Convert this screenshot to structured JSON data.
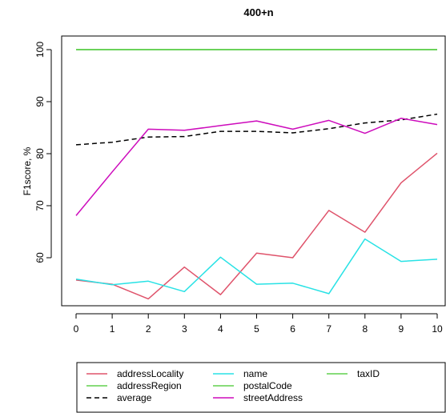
{
  "chart_data": {
    "type": "line",
    "title": "400+n",
    "xlabel": "",
    "ylabel": "F1score, %",
    "x": [
      0,
      1,
      2,
      3,
      4,
      5,
      6,
      7,
      8,
      9,
      10
    ],
    "x_ticks": [
      "0",
      "1",
      "2",
      "3",
      "4",
      "5",
      "6",
      "7",
      "8",
      "9",
      "10"
    ],
    "y_ticks": [
      "60",
      "70",
      "80",
      "90",
      "100"
    ],
    "xlim": [
      0,
      10
    ],
    "ylim": [
      51,
      102
    ],
    "grid": false,
    "legend_position": "bottom",
    "series": [
      {
        "name": "addressLocality",
        "color": "#DF536B",
        "dash": "solid",
        "values": [
          55.7,
          54.9,
          52.1,
          58.2,
          52.9,
          60.9,
          60.0,
          69.1,
          64.9,
          74.4,
          80.1
        ]
      },
      {
        "name": "addressRegion",
        "color": "#61D04F",
        "dash": "solid",
        "values": [
          100,
          100,
          100,
          100,
          100,
          100,
          100,
          100,
          100,
          100,
          100
        ]
      },
      {
        "name": "average",
        "color": "#000000",
        "dash": "dashed",
        "values": [
          81.7,
          82.2,
          83.2,
          83.3,
          84.3,
          84.3,
          84.0,
          84.8,
          85.9,
          86.5,
          87.6
        ]
      },
      {
        "name": "name",
        "color": "#28E2E5",
        "dash": "solid",
        "values": [
          55.9,
          54.8,
          55.5,
          53.5,
          60.1,
          54.9,
          55.1,
          53.1,
          63.6,
          59.3,
          59.7
        ]
      },
      {
        "name": "postalCode",
        "color": "#61D04F",
        "dash": "solid",
        "values": [
          100,
          100,
          100,
          100,
          100,
          100,
          100,
          100,
          100,
          100,
          100
        ]
      },
      {
        "name": "streetAddress",
        "color": "#CD0BBC",
        "dash": "solid",
        "values": [
          68.1,
          76.5,
          84.7,
          84.5,
          85.4,
          86.3,
          84.7,
          86.4,
          83.9,
          86.8,
          85.6
        ]
      },
      {
        "name": "taxID",
        "color": "#61D04F",
        "dash": "solid",
        "values": [
          100,
          100,
          100,
          100,
          100,
          100,
          100,
          100,
          100,
          100,
          100
        ]
      }
    ]
  }
}
